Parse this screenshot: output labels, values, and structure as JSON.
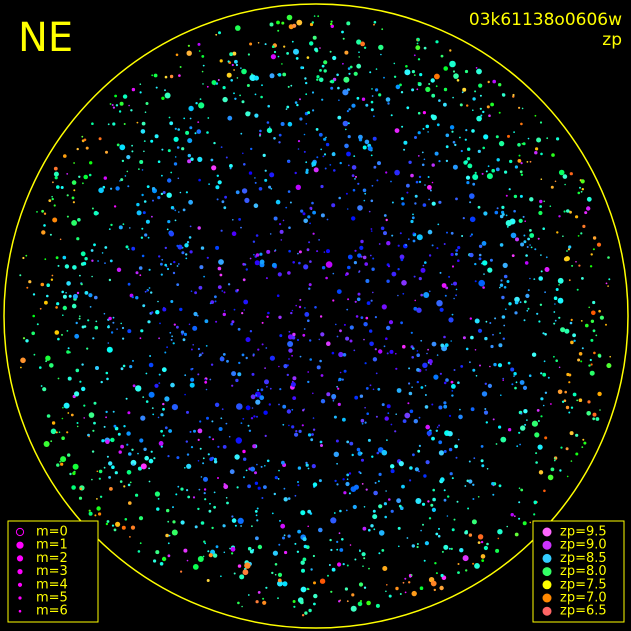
{
  "header": {
    "corner": "NE",
    "frame": "03k61138o0606w",
    "mode": "zp"
  },
  "legend_m": [
    "m=0",
    "m=1",
    "m=2",
    "m=3",
    "m=4",
    "m=5",
    "m=6"
  ],
  "legend_zp": [
    {
      "label": "zp=9.5",
      "color": "#ff66ff"
    },
    {
      "label": "zp=9.0",
      "color": "#cc33ff"
    },
    {
      "label": "zp=8.5",
      "color": "#33ccff"
    },
    {
      "label": "zp=8.0",
      "color": "#33ff66"
    },
    {
      "label": "zp=7.5",
      "color": "#ffff00"
    },
    {
      "label": "zp=7.0",
      "color": "#ff8800"
    },
    {
      "label": "zp=6.5",
      "color": "#ff6666"
    }
  ]
}
